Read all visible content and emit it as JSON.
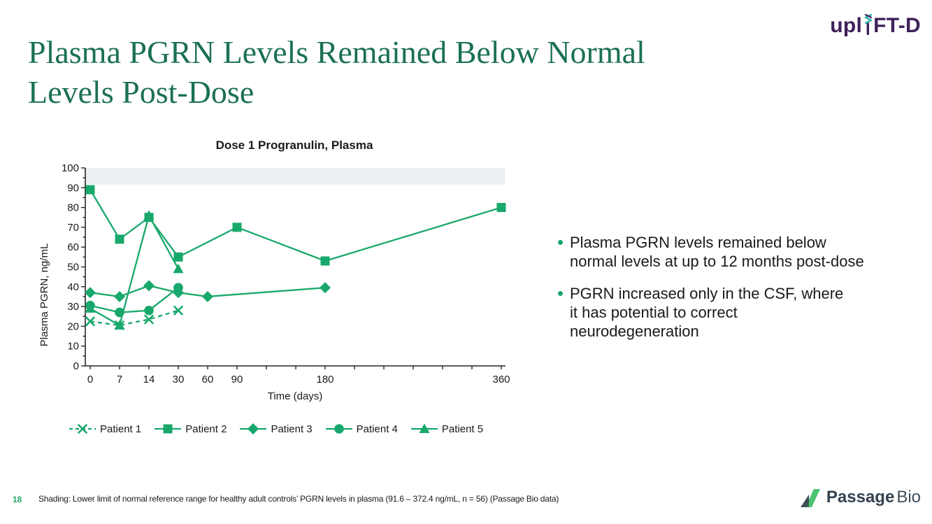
{
  "logos": {
    "uplift": {
      "pre": "upl",
      "post": "FT-D",
      "purple": "#3E2159",
      "teal": "#2FB5AC"
    },
    "passage": {
      "bold": "Passage",
      "regular": "Bio",
      "green": "#4CC473",
      "slate": "#3F4E59"
    }
  },
  "title": {
    "line1": "Plasma PGRN Levels Remained Below Normal",
    "line2": "Levels Post-Dose",
    "color": "#1B7152"
  },
  "bullets": [
    {
      "lines": [
        "Plasma PGRN levels remained below",
        "normal levels at up to 12 months post-dose"
      ]
    },
    {
      "lines": [
        "PGRN increased only in the CSF, where",
        "it has potential to correct",
        "neurodegeneration"
      ]
    }
  ],
  "chart_data": {
    "type": "line",
    "title": "Dose 1 Progranulin, Plasma",
    "xlabel": "Time (days)",
    "ylabel": "Plasma PGRN, ng/mL",
    "ylim": [
      0,
      100
    ],
    "ytick_step": 10,
    "ytick_minor_step": 5,
    "grid": false,
    "legend_position": "bottom",
    "x_tick_days": [
      0,
      7,
      14,
      30,
      60,
      90,
      120,
      150,
      180,
      210,
      240,
      270,
      300,
      330,
      360
    ],
    "x_tick_labels": [
      "0",
      "7",
      "14",
      "30",
      "60",
      "90",
      "",
      "",
      "180",
      "",
      "",
      "",
      "",
      "",
      "360"
    ],
    "band": {
      "from": 91.6,
      "to": 100,
      "color": "#EBF0F5"
    },
    "series_color": "#18A86B",
    "series": [
      {
        "name": "Patient 1",
        "marker": "x",
        "line": "dashed",
        "points": [
          [
            0,
            22.5
          ],
          [
            7,
            20.5
          ],
          [
            14,
            23.5
          ],
          [
            30,
            28
          ]
        ]
      },
      {
        "name": "Patient 2",
        "marker": "square",
        "line": "solid",
        "points": [
          [
            0,
            89
          ],
          [
            7,
            64
          ],
          [
            14,
            75
          ],
          [
            30,
            55
          ],
          [
            90,
            70
          ],
          [
            180,
            53
          ],
          [
            360,
            80
          ]
        ]
      },
      {
        "name": "Patient 3",
        "marker": "diamond",
        "line": "solid",
        "points": [
          [
            0,
            37
          ],
          [
            7,
            35
          ],
          [
            14,
            40.5
          ],
          [
            30,
            37
          ],
          [
            60,
            35
          ],
          [
            180,
            39.5
          ]
        ]
      },
      {
        "name": "Patient 4",
        "marker": "circle",
        "line": "solid",
        "points": [
          [
            0,
            30.5
          ],
          [
            7,
            27
          ],
          [
            14,
            28
          ],
          [
            30,
            39.5
          ]
        ]
      },
      {
        "name": "Patient 5",
        "marker": "triangle",
        "line": "solid",
        "points": [
          [
            0,
            29
          ],
          [
            7,
            20.5
          ],
          [
            14,
            76
          ],
          [
            30,
            49
          ]
        ]
      }
    ],
    "draw_order": [
      0,
      4,
      1,
      2,
      3
    ]
  },
  "footer": {
    "page_number": "18",
    "note": "Shading: Lower limit of normal reference range for healthy adult controls’ PGRN levels in plasma (91.6 – 372.4 ng/mL, n = 56) (Passage Bio data)"
  }
}
